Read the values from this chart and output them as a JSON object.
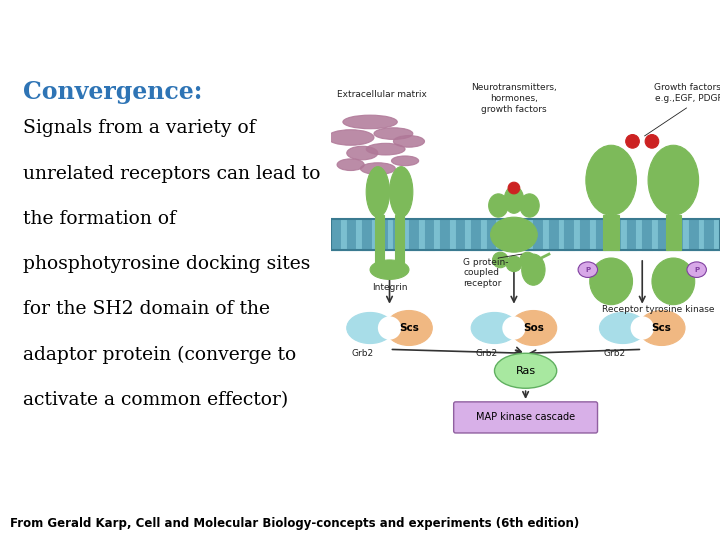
{
  "title": "Convergence:",
  "title_color": "#2E74B5",
  "body_lines": [
    "Signals from a variety of",
    "unrelated receptors can lead to",
    "the formation of",
    "phosphotyrosine docking sites",
    "for the SH2 domain of the",
    "adaptor protein (converge to",
    "activate a common effector)"
  ],
  "body_color": "#000000",
  "footer_text": "From Gerald Karp, Cell and Molecular Biology-concepts and experiments (6th edition)",
  "footer_color": "#000000",
  "bg_color": "#ffffff",
  "title_fontsize": 17,
  "body_fontsize": 13.5,
  "footer_fontsize": 8.5,
  "membrane_color": "#5a9fb5",
  "membrane_line_color": "#3a7a90",
  "integrin_color": "#7dba5a",
  "gpcr_color": "#7dba5a",
  "rtk_color": "#7dba5a",
  "grb2_color": "#a8dde8",
  "sos_color": "#f0b882",
  "ras_color": "#a8e8a0",
  "ras_edge_color": "#60b060",
  "mapk_color": "#d8b0e8",
  "mapk_edge_color": "#9060a0",
  "arrow_color": "#333333",
  "extracell_matrix_color": "#b07898",
  "red_color": "#cc2222",
  "p_circle_color": "#d8a8e8",
  "p_edge_color": "#8040a0",
  "label_color": "#222222",
  "neurotrans_text": "Neurotransmitters,\nhormones,\ngrowth factors",
  "growth_factors_text": "Growth factors,\ne.g.,EGF, PDGF",
  "extracell_text": "Extracellular matrix",
  "integrin_text": "Integrin",
  "gpcr_text": "G protein-\ncoupled\nreceptor",
  "rtk_text": "Receptor tyrosine kinase",
  "grb2_text": "Grb2",
  "sos1_text": "Scs",
  "sos2_text": "Sos",
  "sos3_text": "Scs",
  "ras_text": "Ras",
  "mapk_text": "MAP kinase cascade"
}
